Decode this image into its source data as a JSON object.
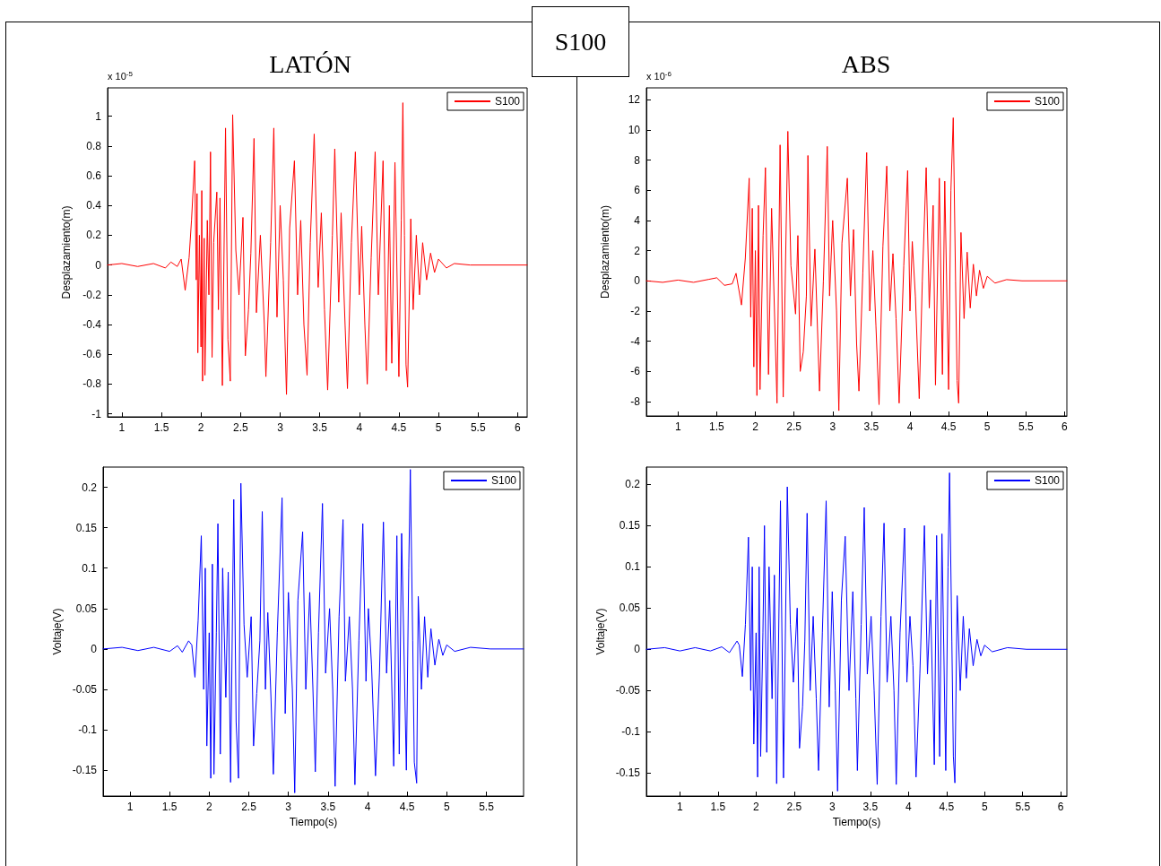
{
  "chart_data": [
    {
      "type": "line",
      "title": "LATÓN",
      "ylabel": "Desplazamiento(m)",
      "annotations": [
        "x 10$^{-5}$",
        "S100"
      ],
      "legend": "top right",
      "grid": false,
      "marker": "none",
      "line_style": "solid",
      "xlim": [
        0.82,
        6.12
      ],
      "xticks": [
        1,
        1.5,
        2,
        2.5,
        3,
        3.5,
        4,
        4.5,
        5,
        5.5,
        6
      ],
      "ylim": [
        -1.02,
        1.19
      ],
      "yticks": [
        -1,
        -0.8,
        -0.6,
        -0.4,
        -0.2,
        0,
        0.2,
        0.4,
        0.6,
        0.8,
        1
      ],
      "series": [
        {
          "name": "S100",
          "color": "#ff0000",
          "x": [
            0.82,
            1.0,
            1.2,
            1.4,
            1.55,
            1.62,
            1.7,
            1.75,
            1.8,
            1.85,
            1.88,
            1.92,
            1.94,
            1.95,
            1.96,
            1.98,
            2.0,
            2.01,
            2.02,
            2.04,
            2.05,
            2.08,
            2.1,
            2.12,
            2.14,
            2.16,
            2.2,
            2.22,
            2.24,
            2.27,
            2.31,
            2.34,
            2.37,
            2.4,
            2.44,
            2.48,
            2.53,
            2.56,
            2.6,
            2.63,
            2.67,
            2.7,
            2.75,
            2.8,
            2.82,
            2.88,
            2.92,
            2.96,
            3.0,
            3.04,
            3.08,
            3.12,
            3.18,
            3.22,
            3.26,
            3.3,
            3.34,
            3.38,
            3.43,
            3.48,
            3.52,
            3.56,
            3.6,
            3.66,
            3.69,
            3.74,
            3.77,
            3.82,
            3.85,
            3.9,
            3.95,
            4.0,
            4.03,
            4.07,
            4.1,
            4.15,
            4.2,
            4.24,
            4.3,
            4.34,
            4.38,
            4.41,
            4.45,
            4.5,
            4.53,
            4.55,
            4.57,
            4.59,
            4.61,
            4.65,
            4.68,
            4.72,
            4.76,
            4.8,
            4.85,
            4.9,
            4.95,
            5.0,
            5.1,
            5.2,
            5.4,
            6.12
          ],
          "values": [
            0,
            0.01,
            -0.01,
            0.01,
            -0.02,
            0.02,
            -0.01,
            0.04,
            -0.17,
            0.05,
            0.3,
            0.7,
            -0.1,
            0.48,
            -0.59,
            0.2,
            -0.55,
            0.5,
            -0.78,
            0.18,
            -0.74,
            0.3,
            -0.2,
            0.76,
            -0.62,
            0.15,
            0.49,
            -0.3,
            0.45,
            -0.81,
            0.92,
            -0.5,
            -0.78,
            1.01,
            0.1,
            -0.2,
            0.32,
            -0.61,
            -0.3,
            0.08,
            0.85,
            -0.32,
            0.2,
            -0.4,
            -0.75,
            0.15,
            0.92,
            -0.35,
            0.4,
            -0.1,
            -0.87,
            0.25,
            0.7,
            -0.2,
            0.3,
            -0.4,
            -0.74,
            0.15,
            0.88,
            -0.15,
            0.35,
            -0.3,
            -0.84,
            0.2,
            0.78,
            -0.25,
            0.35,
            -0.4,
            -0.83,
            0.15,
            0.76,
            -0.2,
            0.26,
            -0.4,
            -0.8,
            0.05,
            0.76,
            -0.2,
            0.7,
            -0.71,
            0.4,
            -0.66,
            0.69,
            -0.75,
            0.3,
            1.09,
            0.2,
            -0.67,
            -0.82,
            0.31,
            -0.3,
            0.2,
            -0.2,
            0.15,
            -0.1,
            0.08,
            -0.05,
            0.04,
            -0.02,
            0.01,
            0,
            0
          ]
        }
      ]
    },
    {
      "type": "line",
      "title": "ABS",
      "ylabel": "Desplazamiento(m)",
      "annotations": [
        "x 10$^{-6}$"
      ],
      "legend": "top right",
      "grid": false,
      "marker": "none",
      "line_style": "solid",
      "xlim": [
        0.59,
        6.03
      ],
      "xticks": [
        1,
        1.5,
        2,
        2.5,
        3,
        3.5,
        4,
        4.5,
        5,
        5.5,
        6
      ],
      "ylim": [
        -8.95,
        12.78
      ],
      "yticks": [
        -8,
        -6,
        -4,
        -2,
        0,
        2,
        4,
        6,
        8,
        10,
        12
      ],
      "series": [
        {
          "name": "S100",
          "color": "#ff0000",
          "x": [
            0.59,
            0.8,
            1.0,
            1.2,
            1.4,
            1.5,
            1.6,
            1.7,
            1.75,
            1.82,
            1.87,
            1.92,
            1.94,
            1.96,
            1.98,
            2.0,
            2.02,
            2.04,
            2.06,
            2.1,
            2.13,
            2.17,
            2.21,
            2.28,
            2.32,
            2.36,
            2.42,
            2.46,
            2.52,
            2.55,
            2.58,
            2.62,
            2.66,
            2.68,
            2.72,
            2.77,
            2.83,
            2.88,
            2.93,
            2.96,
            3.0,
            3.05,
            3.08,
            3.12,
            3.19,
            3.23,
            3.27,
            3.31,
            3.34,
            3.39,
            3.44,
            3.48,
            3.52,
            3.56,
            3.6,
            3.65,
            3.7,
            3.74,
            3.78,
            3.82,
            3.86,
            3.92,
            3.97,
            4.0,
            4.03,
            4.07,
            4.12,
            4.16,
            4.21,
            4.25,
            4.3,
            4.33,
            4.38,
            4.42,
            4.45,
            4.5,
            4.53,
            4.56,
            4.59,
            4.61,
            4.63,
            4.66,
            4.7,
            4.74,
            4.78,
            4.82,
            4.86,
            4.9,
            4.95,
            5.0,
            5.1,
            5.25,
            5.45,
            6.03
          ],
          "values": [
            0,
            -0.1,
            0.05,
            -0.1,
            0.1,
            0.2,
            -0.3,
            -0.2,
            0.5,
            -1.6,
            1.5,
            6.8,
            -2.4,
            4.8,
            -5.7,
            2,
            -7.6,
            5,
            -7.2,
            3,
            7.5,
            -6.2,
            4.8,
            -8.1,
            9,
            -7.7,
            9.9,
            1,
            -2.2,
            3,
            -6,
            -4.7,
            -1,
            8.3,
            -3,
            2.1,
            -7.3,
            0,
            8.9,
            -1,
            4,
            -2,
            -8.6,
            2.5,
            6.8,
            -1,
            3.4,
            -4.2,
            -7.3,
            0.5,
            8.5,
            -2,
            2,
            -3,
            -8.2,
            2.3,
            7.6,
            -2,
            1.8,
            -2.5,
            -8.1,
            1,
            7.3,
            -2,
            2.6,
            -1,
            -7.8,
            0,
            7.5,
            -1.8,
            5,
            -6.9,
            6.8,
            -6.2,
            6.6,
            -7.2,
            6,
            10.8,
            0,
            -6.6,
            -8.1,
            3.2,
            -2.5,
            1.9,
            -1.8,
            1.1,
            -1,
            0.7,
            -0.5,
            0.3,
            -0.15,
            0.08,
            0,
            0
          ]
        }
      ]
    },
    {
      "type": "line",
      "xlabel": "Tiempo(s)",
      "ylabel": "Voltaje(V)",
      "legend": "top right",
      "grid": false,
      "marker": "none",
      "line_style": "solid",
      "xlim": [
        0.66,
        5.97
      ],
      "xticks": [
        1,
        1.5,
        2,
        2.5,
        3,
        3.5,
        4,
        4.5,
        5,
        5.5
      ],
      "ylim": [
        -0.182,
        0.225
      ],
      "yticks": [
        -0.15,
        -0.1,
        -0.05,
        0,
        0.05,
        0.1,
        0.15,
        0.2
      ],
      "series": [
        {
          "name": "S100",
          "color": "#0000ff",
          "x": [
            0.66,
            0.9,
            1.1,
            1.3,
            1.5,
            1.6,
            1.66,
            1.74,
            1.78,
            1.82,
            1.86,
            1.9,
            1.93,
            1.95,
            1.97,
            2.0,
            2.02,
            2.04,
            2.06,
            2.09,
            2.11,
            2.14,
            2.17,
            2.21,
            2.24,
            2.27,
            2.31,
            2.34,
            2.37,
            2.4,
            2.44,
            2.48,
            2.53,
            2.56,
            2.6,
            2.64,
            2.67,
            2.71,
            2.74,
            2.78,
            2.81,
            2.86,
            2.92,
            2.96,
            3.0,
            3.05,
            3.08,
            3.12,
            3.18,
            3.22,
            3.27,
            3.31,
            3.34,
            3.38,
            3.43,
            3.47,
            3.52,
            3.56,
            3.59,
            3.64,
            3.69,
            3.72,
            3.77,
            3.81,
            3.84,
            3.89,
            3.94,
            3.98,
            4.01,
            4.05,
            4.1,
            4.15,
            4.2,
            4.24,
            4.28,
            4.33,
            4.37,
            4.4,
            4.43,
            4.49,
            4.52,
            4.54,
            4.57,
            4.59,
            4.62,
            4.64,
            4.68,
            4.72,
            4.76,
            4.8,
            4.85,
            4.9,
            4.95,
            5.0,
            5.1,
            5.3,
            5.55,
            5.97
          ],
          "values": [
            0,
            0.002,
            -0.002,
            0.002,
            -0.003,
            0.004,
            -0.004,
            0.01,
            0.005,
            -0.035,
            0.035,
            0.14,
            -0.05,
            0.1,
            -0.12,
            0.02,
            -0.16,
            0.105,
            -0.155,
            0.02,
            0.155,
            -0.13,
            0.1,
            -0.06,
            0.095,
            -0.165,
            0.185,
            -0.09,
            -0.16,
            0.205,
            0.03,
            -0.035,
            0.04,
            -0.12,
            -0.055,
            0.01,
            0.17,
            -0.05,
            0.045,
            -0.06,
            -0.155,
            0.02,
            0.187,
            -0.08,
            0.07,
            -0.05,
            -0.178,
            0.06,
            0.145,
            -0.05,
            0.07,
            -0.05,
            -0.152,
            0.02,
            0.18,
            -0.03,
            0.05,
            -0.05,
            -0.17,
            0.04,
            0.16,
            -0.04,
            0.04,
            -0.05,
            -0.168,
            0.01,
            0.155,
            -0.04,
            0.05,
            -0.02,
            -0.157,
            -0.03,
            0.157,
            -0.03,
            0.06,
            -0.145,
            0.14,
            -0.13,
            0.143,
            -0.15,
            0.1,
            0.222,
            0.01,
            -0.14,
            -0.166,
            0.065,
            -0.05,
            0.04,
            -0.035,
            0.025,
            -0.02,
            0.012,
            -0.008,
            0.005,
            -0.003,
            0.002,
            0,
            0
          ]
        }
      ]
    },
    {
      "type": "line",
      "xlabel": "Tiempo(s)",
      "ylabel": "Voltaje(V)",
      "legend": "top right",
      "grid": false,
      "marker": "none",
      "line_style": "solid",
      "xlim": [
        0.56,
        6.08
      ],
      "xticks": [
        1,
        1.5,
        2,
        2.5,
        3,
        3.5,
        4,
        4.5,
        5,
        5.5,
        6
      ],
      "ylim": [
        -0.178,
        0.221
      ],
      "yticks": [
        -0.15,
        -0.1,
        -0.05,
        0,
        0.05,
        0.1,
        0.15,
        0.2
      ],
      "series": [
        {
          "name": "S100",
          "color": "#0000ff",
          "x": [
            0.56,
            0.8,
            1.0,
            1.2,
            1.4,
            1.55,
            1.65,
            1.75,
            1.78,
            1.82,
            1.86,
            1.9,
            1.93,
            1.95,
            1.97,
            2.0,
            2.02,
            2.04,
            2.06,
            2.09,
            2.11,
            2.14,
            2.17,
            2.21,
            2.24,
            2.27,
            2.32,
            2.36,
            2.41,
            2.45,
            2.49,
            2.54,
            2.57,
            2.61,
            2.64,
            2.67,
            2.71,
            2.75,
            2.79,
            2.82,
            2.87,
            2.92,
            2.96,
            3.0,
            3.04,
            3.07,
            3.12,
            3.17,
            3.22,
            3.27,
            3.31,
            3.33,
            3.38,
            3.42,
            3.46,
            3.51,
            3.55,
            3.59,
            3.64,
            3.68,
            3.72,
            3.77,
            3.81,
            3.84,
            3.89,
            3.95,
            3.98,
            4.02,
            4.06,
            4.1,
            4.15,
            4.21,
            4.25,
            4.29,
            4.34,
            4.37,
            4.41,
            4.44,
            4.49,
            4.52,
            4.54,
            4.57,
            4.59,
            4.61,
            4.64,
            4.68,
            4.72,
            4.76,
            4.8,
            4.85,
            4.9,
            4.95,
            5.0,
            5.1,
            5.3,
            5.55,
            6.08
          ],
          "values": [
            0,
            0.002,
            -0.002,
            0.002,
            -0.002,
            0.003,
            -0.004,
            0.01,
            0.005,
            -0.033,
            0.03,
            0.136,
            -0.05,
            0.1,
            -0.115,
            0.02,
            -0.155,
            0.1,
            -0.13,
            0.02,
            0.15,
            -0.125,
            0.1,
            -0.06,
            0.09,
            -0.163,
            0.18,
            -0.156,
            0.197,
            0.03,
            -0.04,
            0.05,
            -0.12,
            -0.07,
            0.01,
            0.165,
            -0.05,
            0.04,
            -0.06,
            -0.147,
            0.02,
            0.18,
            -0.07,
            0.07,
            -0.05,
            -0.172,
            0.06,
            0.137,
            -0.05,
            0.07,
            -0.06,
            -0.147,
            0.03,
            0.172,
            -0.03,
            0.04,
            -0.05,
            -0.164,
            0.04,
            0.153,
            -0.04,
            0.04,
            -0.05,
            -0.164,
            0.02,
            0.147,
            -0.04,
            0.04,
            -0.02,
            -0.155,
            -0.03,
            0.15,
            -0.03,
            0.06,
            -0.14,
            0.138,
            -0.13,
            0.14,
            -0.147,
            0.1,
            0.214,
            0.01,
            -0.13,
            -0.162,
            0.065,
            -0.05,
            0.04,
            -0.035,
            0.025,
            -0.02,
            0.012,
            -0.008,
            0.005,
            -0.003,
            0.002,
            0,
            0
          ]
        }
      ]
    }
  ]
}
